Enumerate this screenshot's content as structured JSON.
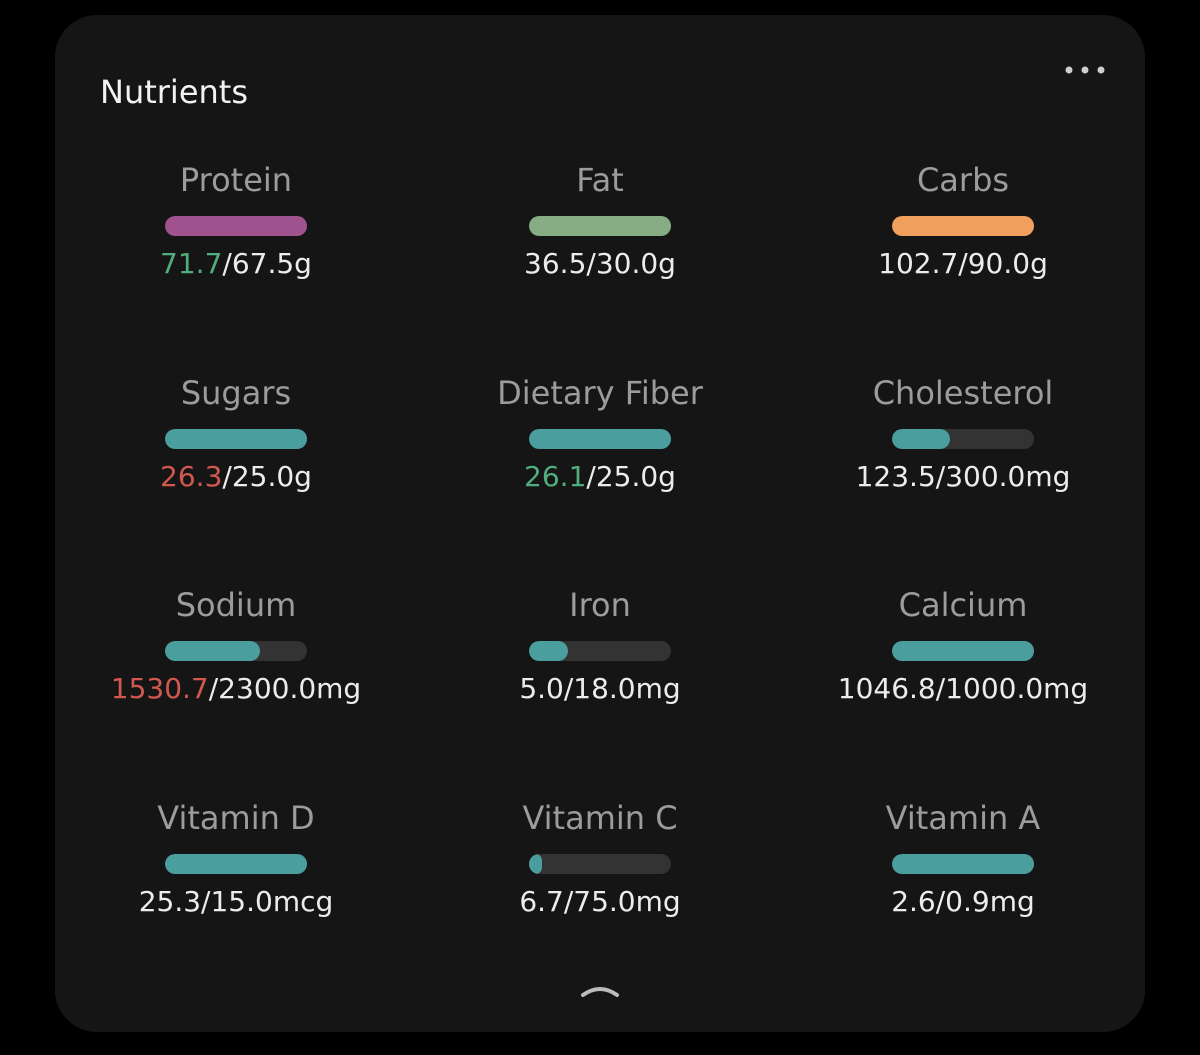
{
  "title": "Nutrients",
  "items": [
    {
      "label": "Protein",
      "consumed": "71.7",
      "goal": {
        "value": 67.5,
        "label": "/67.5g"
      },
      "color": "#a0528f",
      "consumed_color": "#4fae7c"
    },
    {
      "label": "Fat",
      "consumed": "36.5",
      "goal": {
        "value": 30.0,
        "label": "/30.0g"
      },
      "color": "#87ad85"
    },
    {
      "label": "Carbs",
      "consumed": "102.7",
      "goal": {
        "value": 90.0,
        "label": "/90.0g"
      },
      "color": "#f0a05c"
    },
    {
      "label": "Sugars",
      "consumed": "26.3",
      "goal": {
        "value": 25.0,
        "label": "/25.0g"
      },
      "color": "#4a9e9e",
      "consumed_color": "#d0584f"
    },
    {
      "label": "Dietary Fiber",
      "consumed": "26.1",
      "goal": {
        "value": 25.0,
        "label": "/25.0g"
      },
      "color": "#4a9e9e",
      "consumed_color": "#4fae7c"
    },
    {
      "label": "Cholesterol",
      "consumed": "123.5",
      "goal": {
        "value": 300.0,
        "label": "/300.0mg"
      },
      "color": "#4a9e9e"
    },
    {
      "label": "Sodium",
      "consumed": "1530.7",
      "goal": {
        "value": 2300.0,
        "label": "/2300.0mg"
      },
      "color": "#4a9e9e",
      "consumed_color": "#d0584f"
    },
    {
      "label": "Iron",
      "consumed": "5.0",
      "goal": {
        "value": 18.0,
        "label": "/18.0mg"
      },
      "color": "#4a9e9e"
    },
    {
      "label": "Calcium",
      "consumed": "1046.8",
      "goal": {
        "value": 1000.0,
        "label": "/1000.0mg"
      },
      "color": "#4a9e9e"
    },
    {
      "label": "Vitamin D",
      "consumed": "25.3",
      "goal": {
        "value": 15.0,
        "label": "/15.0mcg"
      },
      "color": "#4a9e9e"
    },
    {
      "label": "Vitamin C",
      "consumed": "6.7",
      "goal": {
        "value": 75.0,
        "label": "/75.0mg"
      },
      "color": "#4a9e9e"
    },
    {
      "label": "Vitamin A",
      "consumed": "2.6",
      "goal": {
        "value": 0.9,
        "label": "/0.9mg"
      },
      "color": "#4a9e9e"
    }
  ]
}
